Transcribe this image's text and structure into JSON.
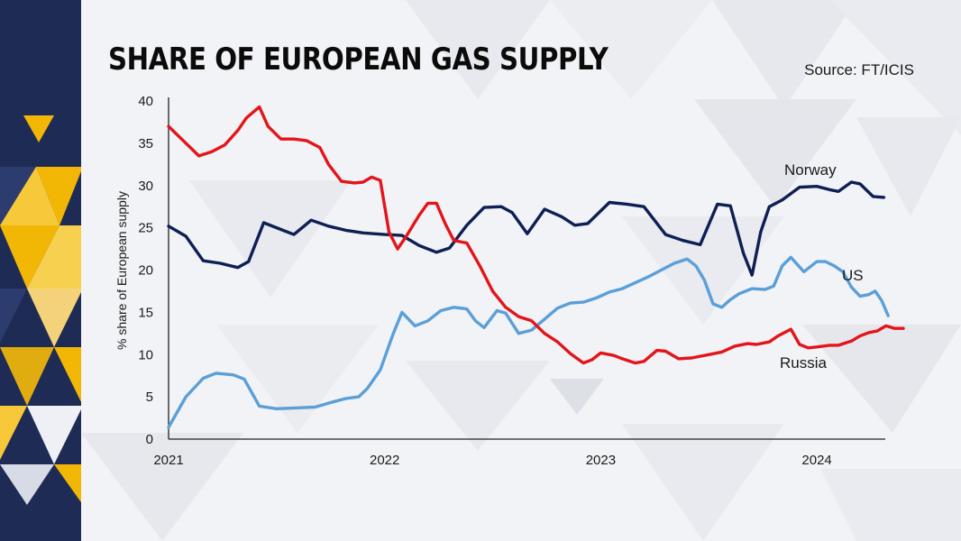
{
  "header": {
    "title": "SHARE OF EUROPEAN GAS SUPPLY",
    "source": "Source: FT/ICIS"
  },
  "colors": {
    "norway": "#0e1f54",
    "us": "#5b9fd8",
    "russia": "#e3151b",
    "brand_navy": "#1e2b55",
    "brand_yellow": "#f2b705"
  },
  "chart_data": {
    "type": "line",
    "ylabel": "% share of European supply",
    "ylim": [
      0,
      40
    ],
    "yticks": [
      0,
      5,
      10,
      15,
      20,
      25,
      30,
      35,
      40
    ],
    "xlim": [
      2021.0,
      2024.3
    ],
    "xticks": [
      {
        "value": 2021,
        "label": "2021"
      },
      {
        "value": 2022,
        "label": "2022"
      },
      {
        "value": 2023,
        "label": "2023"
      },
      {
        "value": 2024,
        "label": "2024"
      }
    ],
    "grid": false,
    "series": [
      {
        "name": "Norway",
        "color_key": "norway",
        "points": [
          [
            2021.0,
            25.2
          ],
          [
            2021.08,
            24
          ],
          [
            2021.16,
            21.1
          ],
          [
            2021.24,
            20.8
          ],
          [
            2021.32,
            20.3
          ],
          [
            2021.37,
            21
          ],
          [
            2021.44,
            25.6
          ],
          [
            2021.52,
            24.8
          ],
          [
            2021.58,
            24.2
          ],
          [
            2021.66,
            25.9
          ],
          [
            2021.74,
            25.2
          ],
          [
            2021.82,
            24.7
          ],
          [
            2021.9,
            24.4
          ],
          [
            2022.0,
            24.2
          ],
          [
            2022.08,
            24.1
          ],
          [
            2022.16,
            22.9
          ],
          [
            2022.24,
            22.1
          ],
          [
            2022.3,
            22.6
          ],
          [
            2022.38,
            25.3
          ],
          [
            2022.46,
            27.4
          ],
          [
            2022.54,
            27.5
          ],
          [
            2022.59,
            26.8
          ],
          [
            2022.66,
            24.3
          ],
          [
            2022.74,
            27.2
          ],
          [
            2022.82,
            26.3
          ],
          [
            2022.88,
            25.3
          ],
          [
            2022.94,
            25.5
          ],
          [
            2023.04,
            28
          ],
          [
            2023.12,
            27.8
          ],
          [
            2023.2,
            27.5
          ],
          [
            2023.3,
            24.2
          ],
          [
            2023.38,
            23.5
          ],
          [
            2023.46,
            23
          ],
          [
            2023.54,
            27.8
          ],
          [
            2023.6,
            27.6
          ],
          [
            2023.66,
            22
          ],
          [
            2023.7,
            19.4
          ],
          [
            2023.74,
            24.5
          ],
          [
            2023.78,
            27.5
          ],
          [
            2023.84,
            28.3
          ],
          [
            2023.92,
            29.8
          ],
          [
            2024.0,
            29.9
          ],
          [
            2024.06,
            29.5
          ],
          [
            2024.1,
            29.3
          ],
          [
            2024.16,
            30.4
          ],
          [
            2024.2,
            30.2
          ],
          [
            2024.26,
            28.7
          ],
          [
            2024.31,
            28.6
          ]
        ]
      },
      {
        "name": "US",
        "color_key": "us",
        "points": [
          [
            2021.0,
            1.4
          ],
          [
            2021.08,
            5
          ],
          [
            2021.16,
            7.2
          ],
          [
            2021.22,
            7.8
          ],
          [
            2021.3,
            7.6
          ],
          [
            2021.35,
            7.1
          ],
          [
            2021.42,
            3.9
          ],
          [
            2021.5,
            3.6
          ],
          [
            2021.6,
            3.7
          ],
          [
            2021.68,
            3.8
          ],
          [
            2021.76,
            4.4
          ],
          [
            2021.82,
            4.8
          ],
          [
            2021.88,
            5
          ],
          [
            2021.92,
            6
          ],
          [
            2021.98,
            8.2
          ],
          [
            2022.04,
            12.5
          ],
          [
            2022.08,
            15
          ],
          [
            2022.14,
            13.4
          ],
          [
            2022.2,
            14
          ],
          [
            2022.26,
            15.2
          ],
          [
            2022.32,
            15.6
          ],
          [
            2022.38,
            15.4
          ],
          [
            2022.42,
            14
          ],
          [
            2022.46,
            13.2
          ],
          [
            2022.52,
            15.2
          ],
          [
            2022.56,
            14.9
          ],
          [
            2022.62,
            12.5
          ],
          [
            2022.68,
            12.9
          ],
          [
            2022.74,
            14.2
          ],
          [
            2022.8,
            15.5
          ],
          [
            2022.86,
            16.1
          ],
          [
            2022.92,
            16.2
          ],
          [
            2022.98,
            16.7
          ],
          [
            2023.04,
            17.4
          ],
          [
            2023.1,
            17.8
          ],
          [
            2023.16,
            18.5
          ],
          [
            2023.22,
            19.2
          ],
          [
            2023.28,
            20
          ],
          [
            2023.34,
            20.8
          ],
          [
            2023.4,
            21.3
          ],
          [
            2023.44,
            20.5
          ],
          [
            2023.48,
            18.8
          ],
          [
            2023.52,
            16
          ],
          [
            2023.56,
            15.6
          ],
          [
            2023.6,
            16.5
          ],
          [
            2023.64,
            17.2
          ],
          [
            2023.7,
            17.8
          ],
          [
            2023.76,
            17.7
          ],
          [
            2023.8,
            18.1
          ],
          [
            2023.84,
            20.5
          ],
          [
            2023.88,
            21.5
          ],
          [
            2023.94,
            19.8
          ],
          [
            2024.0,
            21
          ],
          [
            2024.04,
            21
          ],
          [
            2024.08,
            20.5
          ],
          [
            2024.12,
            19.8
          ],
          [
            2024.16,
            18
          ],
          [
            2024.2,
            16.9
          ],
          [
            2024.24,
            17.1
          ],
          [
            2024.27,
            17.5
          ],
          [
            2024.3,
            16.4
          ],
          [
            2024.33,
            14.6
          ]
        ]
      },
      {
        "name": "Russia",
        "color_key": "russia",
        "points": [
          [
            2021.0,
            37
          ],
          [
            2021.06,
            35.5
          ],
          [
            2021.14,
            33.5
          ],
          [
            2021.2,
            34
          ],
          [
            2021.26,
            34.8
          ],
          [
            2021.32,
            36.5
          ],
          [
            2021.36,
            38
          ],
          [
            2021.42,
            39.3
          ],
          [
            2021.46,
            37
          ],
          [
            2021.52,
            35.5
          ],
          [
            2021.58,
            35.5
          ],
          [
            2021.64,
            35.3
          ],
          [
            2021.7,
            34.5
          ],
          [
            2021.74,
            32.5
          ],
          [
            2021.8,
            30.5
          ],
          [
            2021.86,
            30.3
          ],
          [
            2021.9,
            30.4
          ],
          [
            2021.94,
            31
          ],
          [
            2021.98,
            30.6
          ],
          [
            2022.02,
            24.5
          ],
          [
            2022.06,
            22.5
          ],
          [
            2022.1,
            24
          ],
          [
            2022.16,
            26.5
          ],
          [
            2022.2,
            27.9
          ],
          [
            2022.24,
            27.9
          ],
          [
            2022.28,
            25.5
          ],
          [
            2022.32,
            23.5
          ],
          [
            2022.38,
            23.2
          ],
          [
            2022.44,
            20.5
          ],
          [
            2022.5,
            17.5
          ],
          [
            2022.56,
            15.6
          ],
          [
            2022.62,
            14.5
          ],
          [
            2022.68,
            14
          ],
          [
            2022.74,
            12.5
          ],
          [
            2022.8,
            11.5
          ],
          [
            2022.86,
            10.1
          ],
          [
            2022.92,
            9
          ],
          [
            2022.96,
            9.4
          ],
          [
            2023.0,
            10.2
          ],
          [
            2023.06,
            9.9
          ],
          [
            2023.1,
            9.5
          ],
          [
            2023.16,
            9
          ],
          [
            2023.2,
            9.2
          ],
          [
            2023.26,
            10.5
          ],
          [
            2023.3,
            10.4
          ],
          [
            2023.36,
            9.5
          ],
          [
            2023.42,
            9.6
          ],
          [
            2023.5,
            10
          ],
          [
            2023.56,
            10.3
          ],
          [
            2023.62,
            11
          ],
          [
            2023.68,
            11.3
          ],
          [
            2023.72,
            11.2
          ],
          [
            2023.78,
            11.5
          ],
          [
            2023.82,
            12.2
          ],
          [
            2023.88,
            13
          ],
          [
            2023.92,
            11.2
          ],
          [
            2023.96,
            10.8
          ],
          [
            2024.0,
            10.9
          ],
          [
            2024.06,
            11.1
          ],
          [
            2024.1,
            11.1
          ],
          [
            2024.16,
            11.6
          ],
          [
            2024.2,
            12.2
          ],
          [
            2024.24,
            12.6
          ],
          [
            2024.28,
            12.8
          ],
          [
            2024.32,
            13.4
          ],
          [
            2024.36,
            13.1
          ],
          [
            2024.4,
            13.1
          ]
        ]
      }
    ],
    "annotations": [
      {
        "text": "Norway",
        "color_key": "norway"
      },
      {
        "text": "US",
        "color_key": "us"
      },
      {
        "text": "Russia",
        "color_key": "russia"
      }
    ]
  }
}
